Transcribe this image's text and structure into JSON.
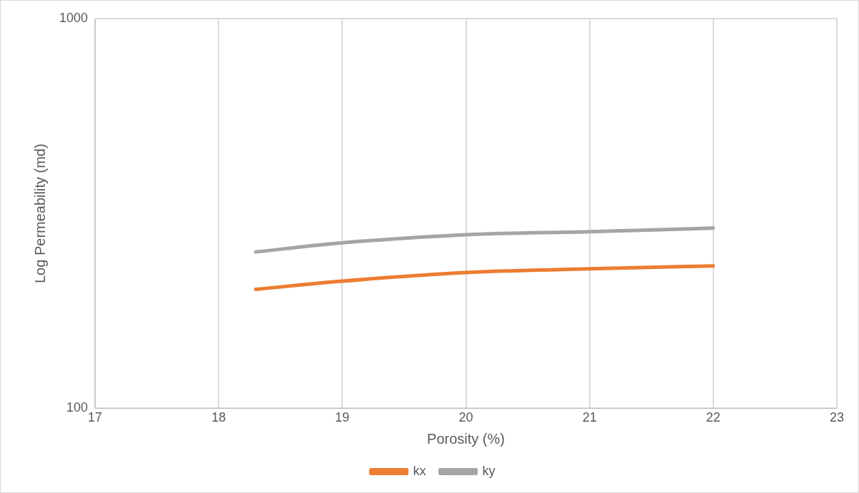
{
  "chart_data": {
    "type": "line",
    "xlabel": "Porosity (%)",
    "ylabel": "Log Permeability (md)",
    "x": [
      18.3,
      19,
      20,
      21,
      22
    ],
    "series": [
      {
        "name": "kx",
        "color": "#ed7d31",
        "values": [
          202,
          212,
          223,
          228,
          232
        ]
      },
      {
        "name": "ky",
        "color": "#a5a5a5",
        "values": [
          252,
          266,
          279,
          284,
          290
        ]
      }
    ],
    "xlim": [
      17,
      23
    ],
    "xticks": [
      17,
      18,
      19,
      20,
      21,
      22,
      23
    ],
    "ylim": [
      100,
      1000
    ],
    "yticks": [
      100,
      1000
    ],
    "log": "y",
    "grid": true,
    "legend": "bottom",
    "marker": "none",
    "line_style": "solid"
  }
}
